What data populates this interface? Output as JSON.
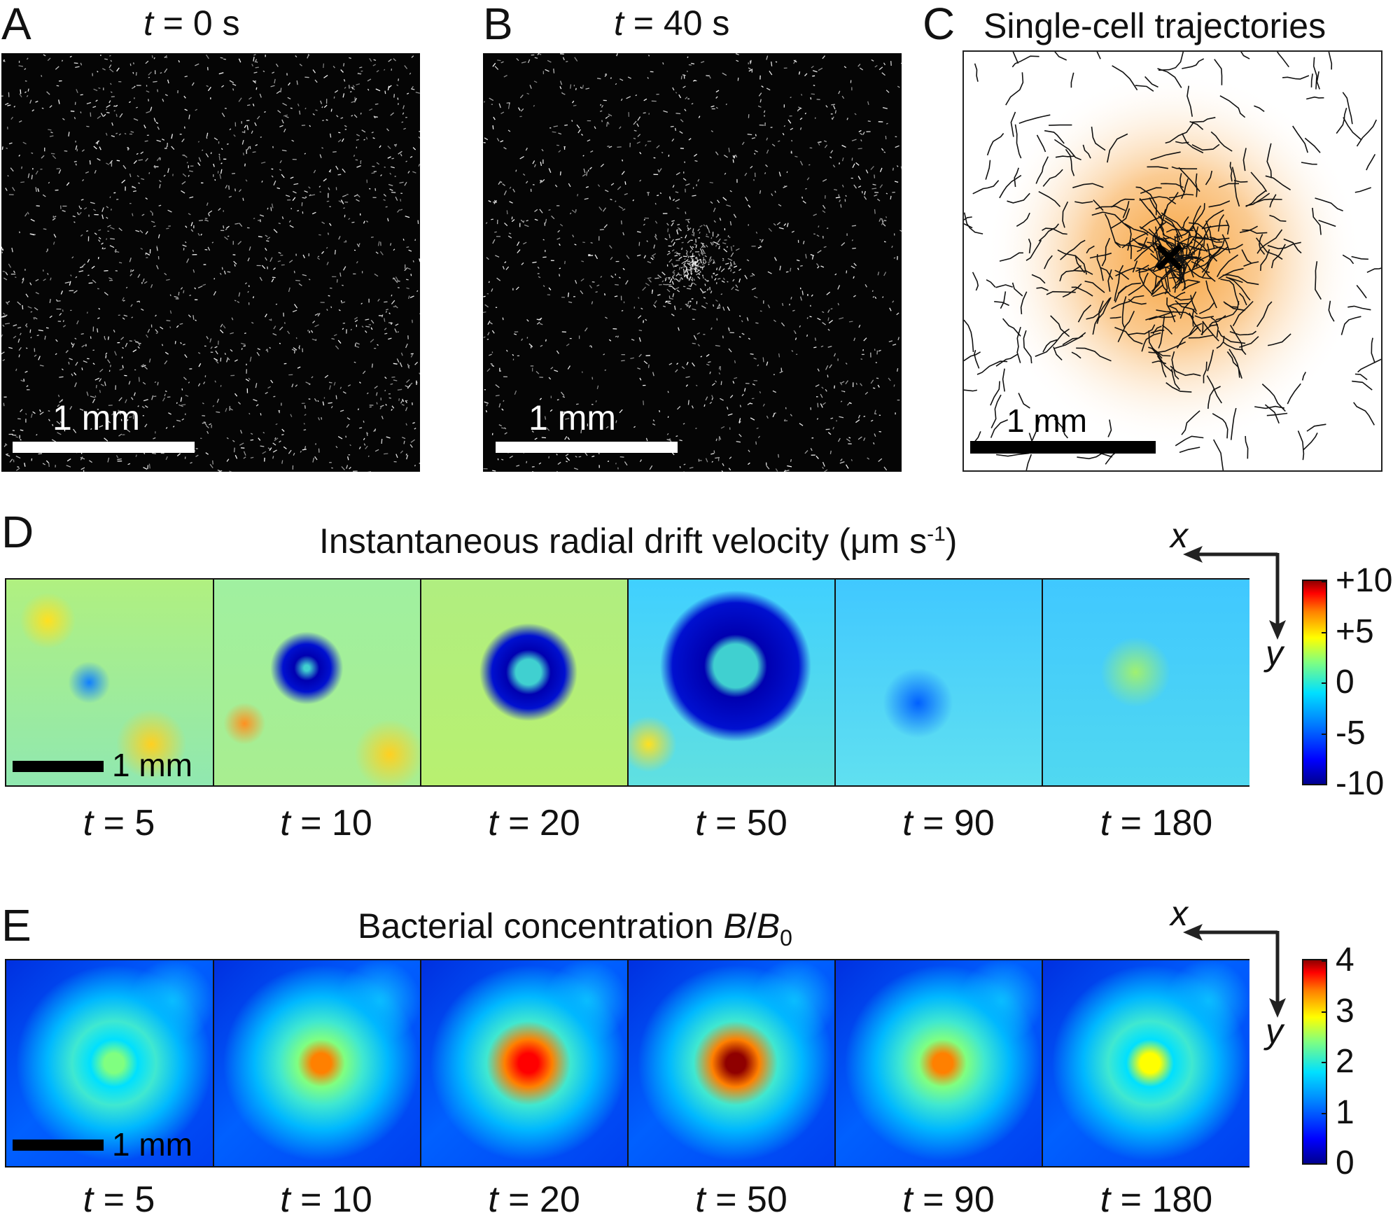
{
  "panels": {
    "A": {
      "letter": "A",
      "time_var": "t",
      "time_rest": " = 0 s",
      "scale_label": "1 mm"
    },
    "B": {
      "letter": "B",
      "time_var": "t",
      "time_rest": " = 40 s",
      "scale_label": "1 mm"
    },
    "C": {
      "letter": "C",
      "title": "Single-cell trajectories",
      "scale_label": "1 mm",
      "marker": "×"
    },
    "D": {
      "letter": "D",
      "title_main": "Instantaneous radial drift velocity (μm s",
      "title_sup": "-1",
      "title_end": ")",
      "scale_label": "1 mm",
      "axis_x": "x",
      "axis_y": "y",
      "time_var": "t",
      "times": [
        " = 5",
        " = 10",
        " = 20",
        " = 50",
        " = 90",
        " = 180"
      ],
      "colorbar_ticks": [
        "+10",
        "+5",
        "0",
        "-5",
        "-10"
      ]
    },
    "E": {
      "letter": "E",
      "title_main": "Bacterial concentration ",
      "title_var": "B",
      "title_slash": "/",
      "title_var2": "B",
      "title_sub": "0",
      "scale_label": "1 mm",
      "axis_x": "x",
      "axis_y": "y",
      "time_var": "t",
      "times": [
        " = 5",
        " = 10",
        " = 20",
        " = 50",
        " = 90",
        " = 180"
      ],
      "colorbar_ticks": [
        "4",
        "3",
        "2",
        "1",
        "0"
      ]
    }
  },
  "colors": {
    "jet_dark_blue": "#00008f",
    "jet_blue": "#0050ff",
    "jet_cyan": "#20d8ff",
    "jet_yellow": "#f5f020",
    "jet_red": "#e00000",
    "trajectory_glow": "#f7a13a"
  }
}
